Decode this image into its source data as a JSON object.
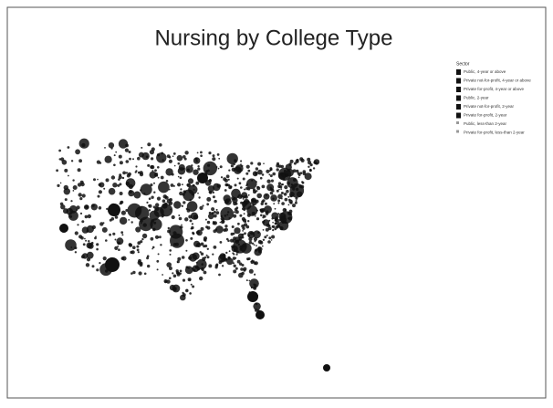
{
  "header": {
    "title": "Nursing by College Type"
  },
  "legend": {
    "title": "Sector",
    "items": [
      "Public, 4-year or above",
      "Private not-for-profit, 4-year or above",
      "Private for-profit, 4-year or above",
      "Public, 2-year",
      "Private not-for-profit, 2-year",
      "Private for-profit, 2-year",
      "Public, less-than 2-year",
      "Private for-profit, less-than 2-year"
    ]
  }
}
